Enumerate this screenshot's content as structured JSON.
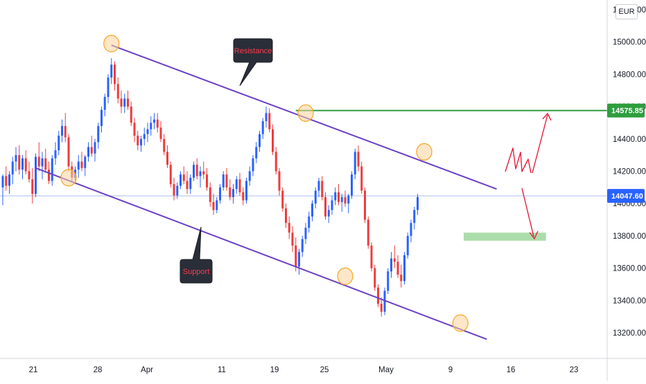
{
  "chart_data": {
    "type": "candlestick",
    "currency": "EUR",
    "y_axis": {
      "range": [
        13100,
        15200
      ],
      "ticks": [
        "13200.00",
        "13400.00",
        "13600.00",
        "13800.00",
        "14000.00",
        "14200.00",
        "14400.00",
        "14600.00",
        "14800.00",
        "15000.00",
        "15200.00"
      ],
      "tick_values": [
        13200,
        13400,
        13600,
        13800,
        14000,
        14200,
        14400,
        14600,
        14800,
        15000,
        15200
      ]
    },
    "x_axis": {
      "ticks": [
        "21",
        "28",
        "Apr",
        "11",
        "19",
        "25",
        "May",
        "9",
        "16",
        "23"
      ]
    },
    "price_labels": [
      {
        "text": "14575.85",
        "value": 14575.85,
        "color": "#2e9e3e"
      },
      {
        "text": "14047.60",
        "value": 14047.6,
        "color": "#2962ff"
      }
    ],
    "annotations": {
      "resistance": "Resistance",
      "support": "Support"
    },
    "candles": [
      [
        14100,
        14180,
        13990,
        14170
      ],
      [
        14170,
        14230,
        14080,
        14110
      ],
      [
        14110,
        14200,
        14060,
        14180
      ],
      [
        14180,
        14290,
        14120,
        14260
      ],
      [
        14260,
        14350,
        14200,
        14300
      ],
      [
        14300,
        14360,
        14180,
        14210
      ],
      [
        14210,
        14300,
        14150,
        14280
      ],
      [
        14280,
        14330,
        14180,
        14200
      ],
      [
        14200,
        14260,
        14130,
        14150
      ],
      [
        14150,
        14220,
        14000,
        14060
      ],
      [
        14060,
        14310,
        14040,
        14290
      ],
      [
        14290,
        14380,
        14200,
        14230
      ],
      [
        14230,
        14320,
        14150,
        14280
      ],
      [
        14280,
        14340,
        14190,
        14210
      ],
      [
        14210,
        14260,
        14120,
        14140
      ],
      [
        14140,
        14300,
        14110,
        14280
      ],
      [
        14280,
        14380,
        14240,
        14330
      ],
      [
        14330,
        14450,
        14300,
        14420
      ],
      [
        14420,
        14520,
        14380,
        14480
      ],
      [
        14480,
        14560,
        14380,
        14410
      ],
      [
        14410,
        14430,
        14200,
        14230
      ],
      [
        14230,
        14260,
        14130,
        14160
      ],
      [
        14160,
        14230,
        14140,
        14210
      ],
      [
        14210,
        14300,
        14160,
        14260
      ],
      [
        14260,
        14320,
        14200,
        14220
      ],
      [
        14220,
        14300,
        14170,
        14290
      ],
      [
        14290,
        14380,
        14260,
        14350
      ],
      [
        14350,
        14420,
        14290,
        14310
      ],
      [
        14310,
        14400,
        14260,
        14380
      ],
      [
        14380,
        14500,
        14340,
        14480
      ],
      [
        14480,
        14600,
        14440,
        14580
      ],
      [
        14580,
        14680,
        14540,
        14660
      ],
      [
        14660,
        14800,
        14620,
        14780
      ],
      [
        14780,
        14900,
        14740,
        14860
      ],
      [
        14860,
        14880,
        14700,
        14740
      ],
      [
        14740,
        14780,
        14620,
        14650
      ],
      [
        14650,
        14700,
        14560,
        14600
      ],
      [
        14600,
        14680,
        14560,
        14650
      ],
      [
        14650,
        14700,
        14580,
        14600
      ],
      [
        14600,
        14630,
        14480,
        14500
      ],
      [
        14500,
        14530,
        14380,
        14420
      ],
      [
        14420,
        14450,
        14330,
        14360
      ],
      [
        14360,
        14420,
        14320,
        14400
      ],
      [
        14400,
        14470,
        14360,
        14430
      ],
      [
        14430,
        14500,
        14380,
        14460
      ],
      [
        14460,
        14540,
        14420,
        14500
      ],
      [
        14500,
        14560,
        14460,
        14520
      ],
      [
        14520,
        14560,
        14440,
        14470
      ],
      [
        14470,
        14510,
        14380,
        14400
      ],
      [
        14400,
        14430,
        14300,
        14320
      ],
      [
        14320,
        14360,
        14220,
        14240
      ],
      [
        14240,
        14260,
        14100,
        14120
      ],
      [
        14120,
        14160,
        14020,
        14050
      ],
      [
        14050,
        14130,
        14030,
        14110
      ],
      [
        14110,
        14200,
        14090,
        14180
      ],
      [
        14180,
        14230,
        14120,
        14140
      ],
      [
        14140,
        14200,
        14060,
        14090
      ],
      [
        14090,
        14180,
        14060,
        14160
      ],
      [
        14160,
        14260,
        14140,
        14240
      ],
      [
        14240,
        14280,
        14150,
        14170
      ],
      [
        14170,
        14230,
        14100,
        14200
      ],
      [
        14200,
        14260,
        14150,
        14180
      ],
      [
        14180,
        14220,
        14080,
        14100
      ],
      [
        14100,
        14130,
        13980,
        14010
      ],
      [
        14010,
        14060,
        13930,
        13960
      ],
      [
        13960,
        14040,
        13940,
        14020
      ],
      [
        14020,
        14120,
        14000,
        14100
      ],
      [
        14100,
        14200,
        14080,
        14180
      ],
      [
        14180,
        14220,
        14080,
        14100
      ],
      [
        14100,
        14150,
        14020,
        14040
      ],
      [
        14040,
        14120,
        14000,
        14090
      ],
      [
        14090,
        14170,
        14060,
        14150
      ],
      [
        14150,
        14190,
        14050,
        14070
      ],
      [
        14070,
        14100,
        13990,
        14020
      ],
      [
        14020,
        14160,
        14000,
        14140
      ],
      [
        14140,
        14230,
        14110,
        14200
      ],
      [
        14200,
        14300,
        14170,
        14280
      ],
      [
        14280,
        14380,
        14250,
        14350
      ],
      [
        14350,
        14450,
        14320,
        14430
      ],
      [
        14430,
        14530,
        14400,
        14510
      ],
      [
        14510,
        14600,
        14470,
        14560
      ],
      [
        14560,
        14590,
        14440,
        14460
      ],
      [
        14460,
        14490,
        14300,
        14320
      ],
      [
        14320,
        14350,
        14180,
        14200
      ],
      [
        14200,
        14220,
        14050,
        14080
      ],
      [
        14080,
        14100,
        13950,
        13970
      ],
      [
        13970,
        14000,
        13850,
        13880
      ],
      [
        13880,
        13920,
        13780,
        13820
      ],
      [
        13820,
        13860,
        13700,
        13740
      ],
      [
        13740,
        13790,
        13580,
        13610
      ],
      [
        13610,
        13720,
        13560,
        13700
      ],
      [
        13700,
        13800,
        13670,
        13780
      ],
      [
        13780,
        13880,
        13750,
        13850
      ],
      [
        13850,
        13950,
        13820,
        13920
      ],
      [
        13920,
        14020,
        13890,
        14000
      ],
      [
        14000,
        14100,
        13970,
        14080
      ],
      [
        14080,
        14160,
        14040,
        14140
      ],
      [
        14140,
        14170,
        14020,
        14040
      ],
      [
        14040,
        14070,
        13900,
        13920
      ],
      [
        13920,
        13990,
        13880,
        13960
      ],
      [
        13960,
        14050,
        13930,
        14020
      ],
      [
        14020,
        14100,
        13990,
        14070
      ],
      [
        14070,
        14120,
        13990,
        14010
      ],
      [
        14010,
        14060,
        13950,
        14040
      ],
      [
        14040,
        14080,
        13980,
        14000
      ],
      [
        14000,
        14060,
        13940,
        14050
      ],
      [
        14050,
        14200,
        14030,
        14180
      ],
      [
        14180,
        14340,
        14150,
        14320
      ],
      [
        14320,
        14360,
        14200,
        14230
      ],
      [
        14230,
        14260,
        14060,
        14080
      ],
      [
        14080,
        14100,
        13880,
        13900
      ],
      [
        13900,
        13920,
        13720,
        13740
      ],
      [
        13740,
        13760,
        13580,
        13600
      ],
      [
        13600,
        13620,
        13460,
        13480
      ],
      [
        13480,
        13500,
        13360,
        13380
      ],
      [
        13380,
        13420,
        13300,
        13330
      ],
      [
        13330,
        13480,
        13310,
        13460
      ],
      [
        13460,
        13600,
        13440,
        13580
      ],
      [
        13580,
        13700,
        13540,
        13660
      ],
      [
        13660,
        13740,
        13600,
        13640
      ],
      [
        13640,
        13680,
        13540,
        13560
      ],
      [
        13560,
        13620,
        13480,
        13520
      ],
      [
        13520,
        13700,
        13500,
        13680
      ],
      [
        13680,
        13820,
        13660,
        13800
      ],
      [
        13800,
        13900,
        13760,
        13880
      ],
      [
        13880,
        13980,
        13840,
        13960
      ],
      [
        13960,
        14060,
        13930,
        14040
      ]
    ],
    "drawings": {
      "resistance_line": {
        "from": {
          "index": 33,
          "value": 14980
        },
        "to": {
          "index": 150,
          "value": 14090
        }
      },
      "support_line": {
        "from": {
          "index": 10,
          "value": 14220
        },
        "to": {
          "index": 147,
          "value": 13160
        }
      },
      "horizontal_level": {
        "value": 14575.85,
        "from_index": 89
      },
      "target_zone": {
        "from_index": 140,
        "to_index": 165,
        "low": 13770,
        "high": 13820
      },
      "current_price": 14047.6
    }
  }
}
